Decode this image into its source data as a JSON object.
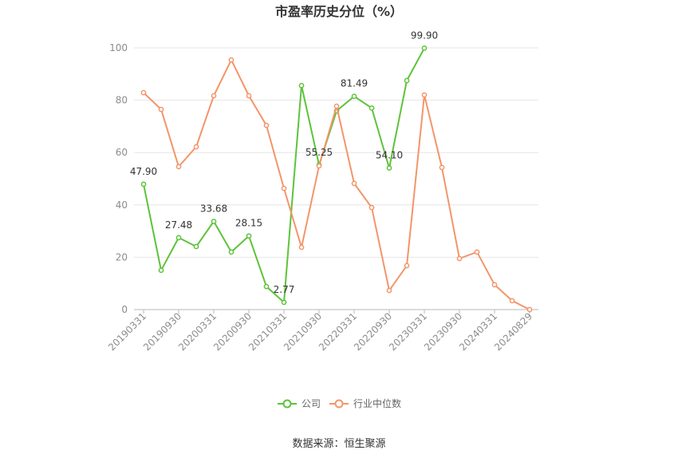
{
  "chart_data": {
    "type": "line",
    "title": "市盈率历史分位（%）",
    "categories": [
      "20190331",
      "",
      "20190930",
      "",
      "20200331",
      "",
      "20200930",
      "",
      "20210331",
      "",
      "20210930",
      "",
      "20220331",
      "",
      "20220930",
      "",
      "20230331",
      "",
      "20230930",
      "",
      "20240331",
      "",
      "20240829"
    ],
    "ylim": [
      0,
      100
    ],
    "yticks": [
      0,
      20,
      40,
      60,
      80,
      100
    ],
    "grid": true,
    "legend": "bottom",
    "series": [
      {
        "name": "公司",
        "color": "#5dc33a",
        "values": [
          47.9,
          15.0,
          27.48,
          24.1,
          33.68,
          22.0,
          28.15,
          8.8,
          2.77,
          85.6,
          55.25,
          75.9,
          81.49,
          77.0,
          54.1,
          87.5,
          99.9,
          null,
          null,
          null,
          null,
          null,
          null
        ],
        "data_labels": [
          "47.90",
          null,
          "27.48",
          null,
          "33.68",
          null,
          "28.15",
          null,
          "2.77",
          null,
          "55.25",
          null,
          "81.49",
          null,
          "54.10",
          null,
          "99.90",
          null,
          null,
          null,
          null,
          null,
          null
        ]
      },
      {
        "name": "行业中位数",
        "color": "#f3956a",
        "values": [
          82.9,
          76.5,
          54.6,
          62.2,
          81.7,
          95.4,
          81.7,
          70.4,
          46.3,
          23.8,
          54.9,
          77.7,
          48.2,
          39.0,
          7.3,
          16.8,
          82.0,
          54.3,
          19.5,
          22.0,
          9.5,
          3.4,
          0.0
        ]
      }
    ]
  },
  "source": "数据来源：恒生聚源"
}
